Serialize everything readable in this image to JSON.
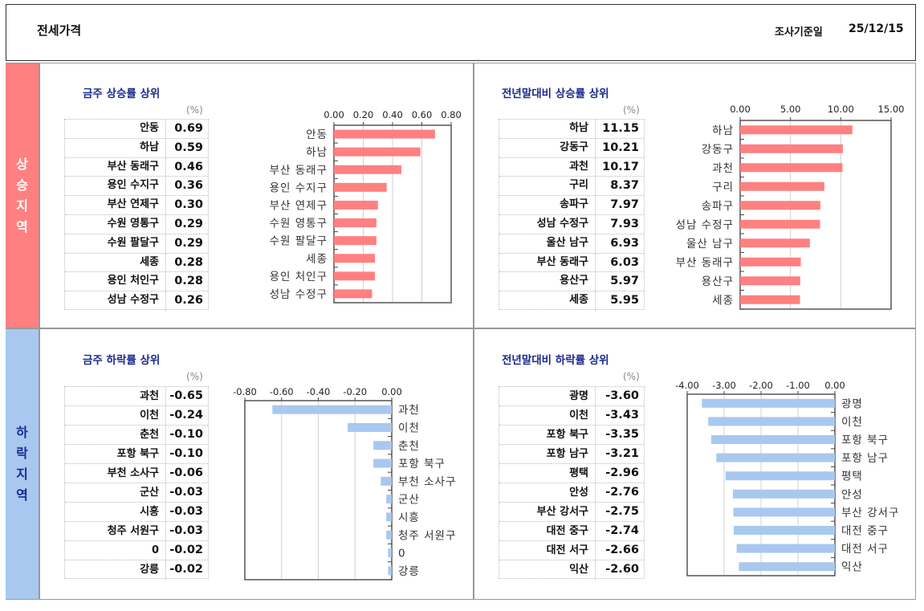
{
  "header": {
    "title": "전세가격",
    "survey_date_label": "조사기준일",
    "survey_date": "25/12/15"
  },
  "side": {
    "rise": [
      "상",
      "승",
      "지",
      "역"
    ],
    "fall": [
      "하",
      "락",
      "지",
      "역"
    ]
  },
  "colors": {
    "rise": "#ff8080",
    "fall": "#a8c8f0",
    "rise_side": "#ff8080",
    "fall_side": "#a8c8f0",
    "title": "#1a2a8c"
  },
  "unit": "(%)",
  "chart_data": [
    {
      "id": "weekly_rise",
      "type": "bar",
      "title": "금주 상승률 상위",
      "xlim": [
        0,
        0.8
      ],
      "ticks": [
        "0.00",
        "0.20",
        "0.40",
        "0.60",
        "0.80"
      ],
      "tick_values": [
        0,
        0.2,
        0.4,
        0.6,
        0.8
      ],
      "categories": [
        "안동",
        "하남",
        "부산 동래구",
        "용인 수지구",
        "부산 연제구",
        "수원 영통구",
        "수원 팔달구",
        "세종",
        "용인 처인구",
        "성남 수정구"
      ],
      "values": [
        0.69,
        0.59,
        0.46,
        0.36,
        0.3,
        0.29,
        0.29,
        0.28,
        0.28,
        0.26
      ],
      "labels": [
        "0.69",
        "0.59",
        "0.46",
        "0.36",
        "0.30",
        "0.29",
        "0.29",
        "0.28",
        "0.28",
        "0.26"
      ]
    },
    {
      "id": "ytd_rise",
      "type": "bar",
      "title": "전년말대비 상승률 상위",
      "xlim": [
        0,
        15
      ],
      "ticks": [
        "0.00",
        "5.00",
        "10.00",
        "15.00"
      ],
      "tick_values": [
        0,
        5,
        10,
        15
      ],
      "categories": [
        "하남",
        "강동구",
        "과천",
        "구리",
        "송파구",
        "성남 수정구",
        "울산 남구",
        "부산 동래구",
        "용산구",
        "세종"
      ],
      "values": [
        11.15,
        10.21,
        10.17,
        8.37,
        7.97,
        7.93,
        6.93,
        6.03,
        5.97,
        5.95
      ],
      "labels": [
        "11.15",
        "10.21",
        "10.17",
        "8.37",
        "7.97",
        "7.93",
        "6.93",
        "6.03",
        "5.97",
        "5.95"
      ]
    },
    {
      "id": "weekly_fall",
      "type": "bar",
      "title": "금주 하락률 상위",
      "xlim": [
        -0.8,
        0
      ],
      "ticks": [
        "-0.80",
        "-0.60",
        "-0.40",
        "-0.20",
        "0.00"
      ],
      "tick_values": [
        -0.8,
        -0.6,
        -0.4,
        -0.2,
        0
      ],
      "categories": [
        "과천",
        "이천",
        "춘천",
        "포항 북구",
        "부천 소사구",
        "군산",
        "시흥",
        "청주 서원구",
        "0",
        "강릉"
      ],
      "values": [
        -0.65,
        -0.24,
        -0.1,
        -0.1,
        -0.06,
        -0.03,
        -0.03,
        -0.03,
        -0.02,
        -0.02
      ],
      "labels": [
        "-0.65",
        "-0.24",
        "-0.10",
        "-0.10",
        "-0.06",
        "-0.03",
        "-0.03",
        "-0.03",
        "-0.02",
        "-0.02"
      ]
    },
    {
      "id": "ytd_fall",
      "type": "bar",
      "title": "전년말대비 하락률 상위",
      "xlim": [
        -4,
        0
      ],
      "ticks": [
        "-4.00",
        "-3.00",
        "-2.00",
        "-1.00",
        "0.00"
      ],
      "tick_values": [
        -4,
        -3,
        -2,
        -1,
        0
      ],
      "categories": [
        "광명",
        "이천",
        "포항 북구",
        "포항 남구",
        "평택",
        "안성",
        "부산 강서구",
        "대전 중구",
        "대전 서구",
        "익산"
      ],
      "values": [
        -3.6,
        -3.43,
        -3.35,
        -3.21,
        -2.96,
        -2.76,
        -2.75,
        -2.74,
        -2.66,
        -2.6
      ],
      "labels": [
        "-3.60",
        "-3.43",
        "-3.35",
        "-3.21",
        "-2.96",
        "-2.76",
        "-2.75",
        "-2.74",
        "-2.66",
        "-2.60"
      ]
    }
  ]
}
